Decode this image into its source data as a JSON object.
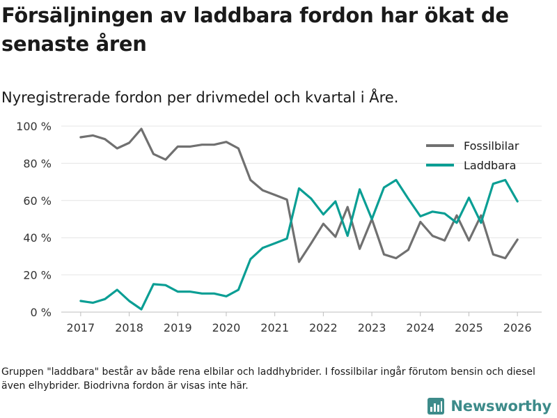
{
  "title": "Försäljningen av laddbara fordon har ökat de senaste åren",
  "subtitle": "Nyregistrerade fordon per drivmedel och kvartal i Åre.",
  "footnote": "Gruppen \"laddbara\" består av både rena elbilar och laddhybrider. I fossilbilar ingår förutom bensin och diesel även elhybrider. Biodrivna fordon är visas inte här.",
  "brand": {
    "name": "Newsworthy",
    "logo_icon": "bar-chart-icon",
    "color": "#3d8b8a"
  },
  "chart_data": {
    "type": "line",
    "title": "Nyregistrerade fordon per drivmedel och kvartal i Åre.",
    "xlabel": "",
    "ylabel": "",
    "x_ticks": [
      2017,
      2018,
      2019,
      2020,
      2021,
      2022,
      2023,
      2024,
      2025,
      2026
    ],
    "xlim": [
      2016.6,
      2026.5
    ],
    "y_ticks": [
      0,
      20,
      40,
      60,
      80,
      100
    ],
    "y_tick_labels": [
      "0 %",
      "20 %",
      "40 %",
      "60 %",
      "80 %",
      "100 %"
    ],
    "ylim": [
      0,
      100
    ],
    "grid": "horizontal",
    "legend_position": "top-right",
    "x": [
      2017,
      2017.25,
      2017.5,
      2017.75,
      2018,
      2018.25,
      2018.5,
      2018.75,
      2019,
      2019.25,
      2019.5,
      2019.75,
      2020,
      2020.25,
      2020.5,
      2020.75,
      2021,
      2021.25,
      2021.5,
      2021.75,
      2022,
      2022.25,
      2022.5,
      2022.75,
      2023,
      2023.25,
      2023.5,
      2023.75,
      2024,
      2024.25,
      2024.5,
      2024.75,
      2025,
      2025.25,
      2025.5,
      2025.75,
      2026
    ],
    "series": [
      {
        "name": "Fossilbilar",
        "color": "#707070",
        "values": [
          94,
          95,
          93,
          88,
          91,
          98.5,
          85,
          82,
          89,
          89,
          90,
          90,
          91.5,
          88,
          71,
          65.5,
          63,
          60.5,
          27,
          37,
          47.5,
          40.5,
          56.5,
          34,
          50,
          31,
          29,
          33.5,
          48.5,
          41,
          38.5,
          52,
          38.5,
          52,
          31,
          29,
          39
        ]
      },
      {
        "name": "Laddbara",
        "color": "#0a9e94",
        "values": [
          6,
          5,
          7,
          12,
          6,
          1.5,
          15,
          14.5,
          11,
          11,
          10,
          10,
          8.5,
          12,
          28.5,
          34.5,
          37,
          39.5,
          66.5,
          61,
          52.5,
          59.5,
          41,
          66,
          50,
          67,
          71,
          61,
          51.5,
          54,
          53,
          48,
          61.5,
          48,
          69,
          71,
          59.5
        ]
      }
    ]
  }
}
